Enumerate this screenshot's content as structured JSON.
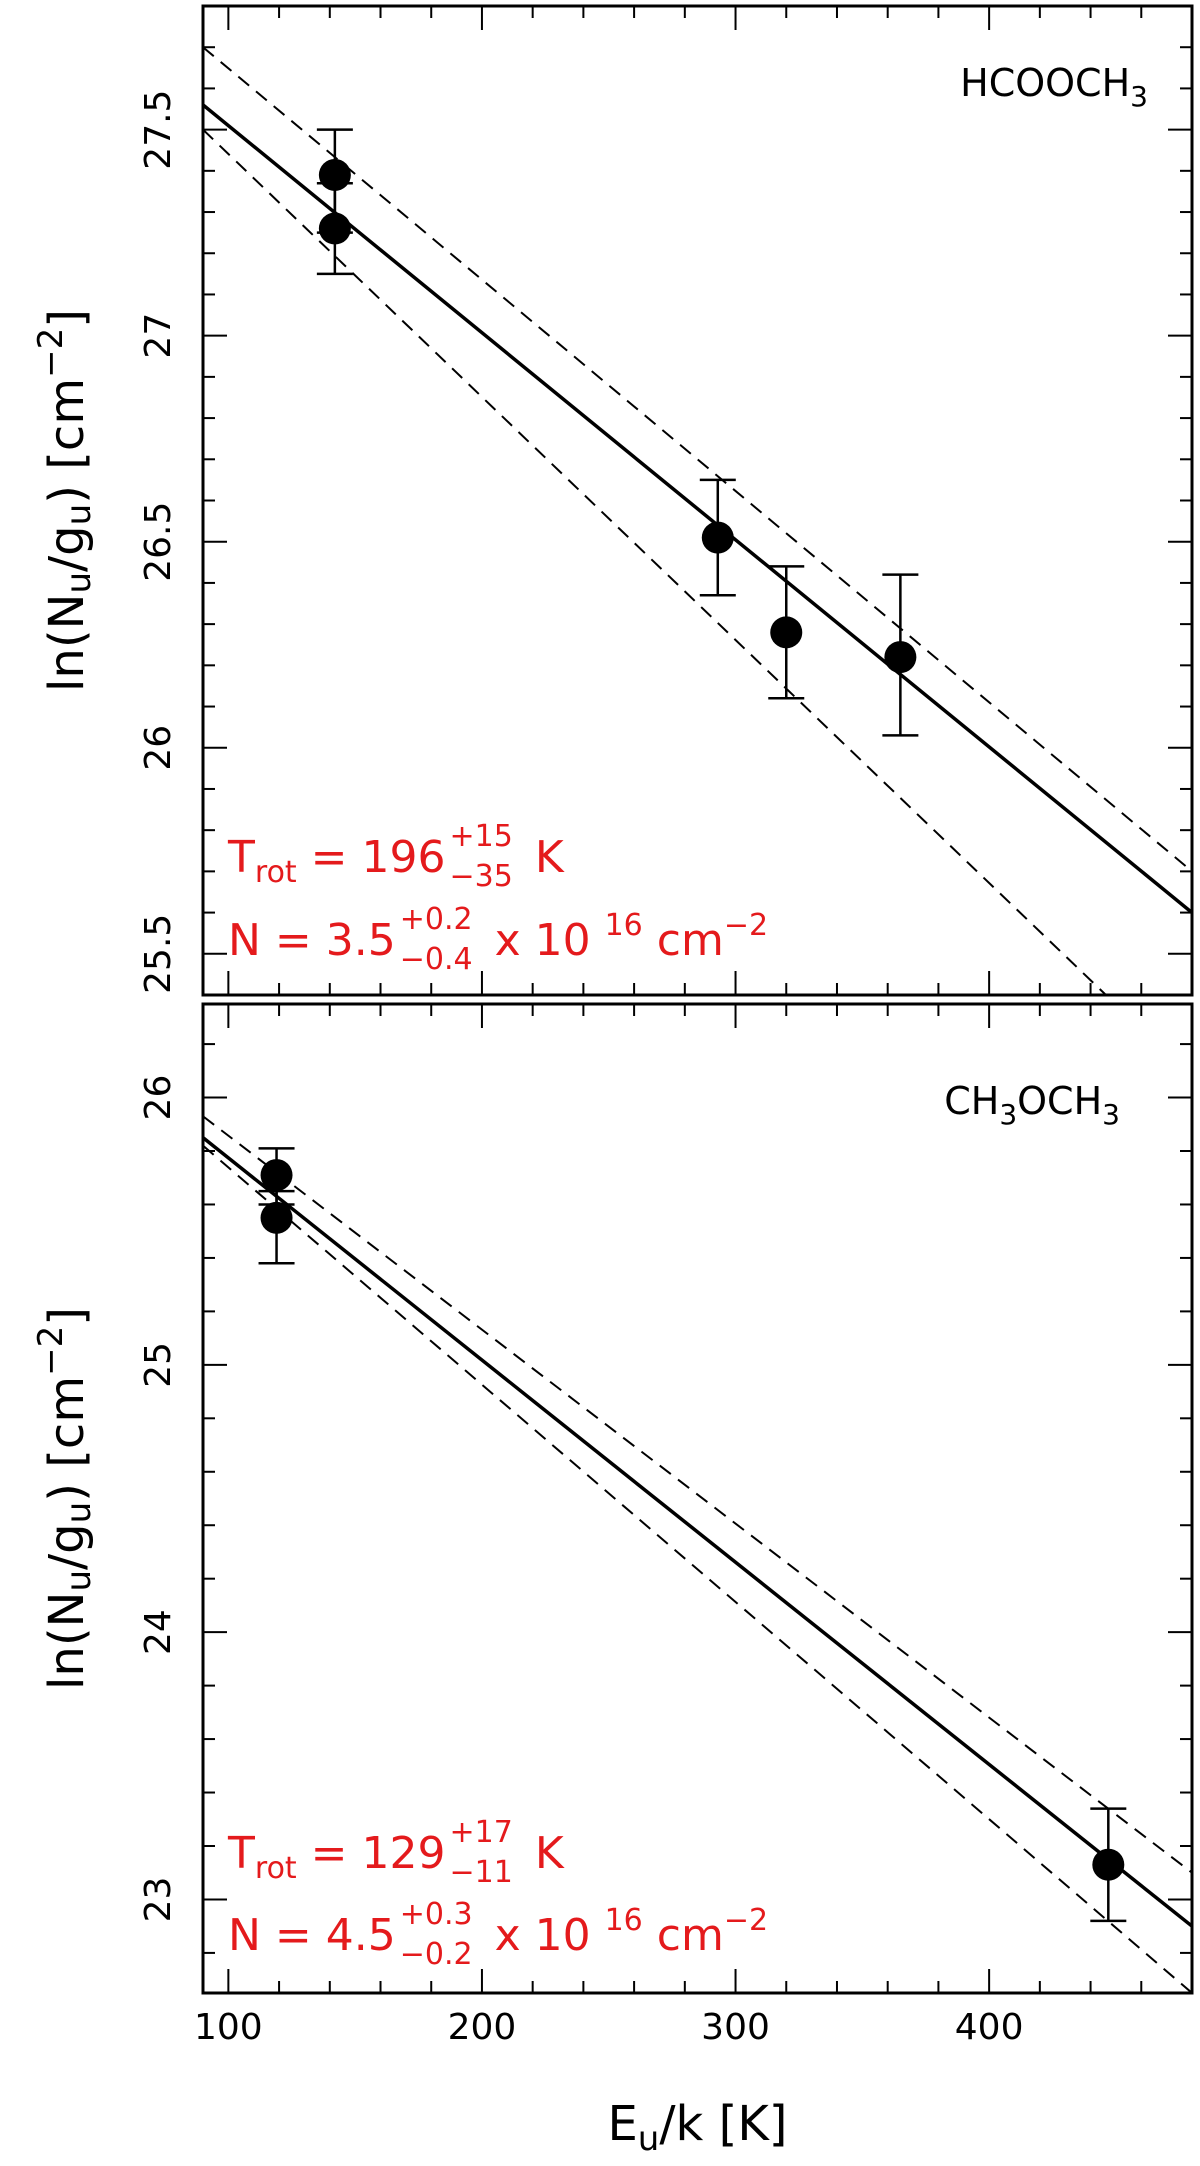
{
  "chart_data": [
    {
      "type": "scatter",
      "species": "HCOOCH",
      "species_subscript": "3",
      "ylabel": {
        "pre": "ln(N",
        "sub1": "u",
        "mid": "/g",
        "sub2": "u",
        "post": ")  [cm",
        "sup": "−2",
        "end": "]"
      },
      "xlim": [
        90,
        480
      ],
      "ylim": [
        25.4,
        27.8
      ],
      "yticks": [
        25.5,
        26,
        26.5,
        27,
        27.5
      ],
      "ytick_labels": [
        "25.5",
        "26",
        "26.5",
        "27",
        "27.5"
      ],
      "points": [
        {
          "x": 142,
          "y": 27.39,
          "err_low": 27.25,
          "err_high": 27.5
        },
        {
          "x": 142,
          "y": 27.26,
          "err_low": 27.15,
          "err_high": 27.37
        },
        {
          "x": 293,
          "y": 26.51,
          "err_low": 26.37,
          "err_high": 26.65
        },
        {
          "x": 320,
          "y": 26.28,
          "err_low": 26.12,
          "err_high": 26.44
        },
        {
          "x": 365,
          "y": 26.22,
          "err_low": 26.03,
          "err_high": 26.42
        }
      ],
      "fit_line": [
        [
          90,
          27.56
        ],
        [
          480,
          25.6
        ]
      ],
      "dashed_lines": [
        [
          [
            90,
            27.7
          ],
          [
            480,
            25.7
          ]
        ],
        [
          [
            90,
            27.5
          ],
          [
            480,
            25.2
          ]
        ]
      ],
      "annotation_trot": {
        "label": "T",
        "label_sub": "rot",
        "value": "196",
        "plus": "+15",
        "minus": "−35",
        "unit": "K"
      },
      "annotation_n": {
        "label": "N",
        "value": "3.5",
        "plus": "+0.2",
        "minus": "−0.4",
        "times": "x 10",
        "exp": "16",
        "unit": "cm",
        "unit_exp": "−2"
      }
    },
    {
      "type": "scatter",
      "species_parts": [
        "CH",
        "3",
        "OCH",
        "3"
      ],
      "ylabel": {
        "pre": "ln(N",
        "sub1": "u",
        "mid": "/g",
        "sub2": "u",
        "post": ")  [cm",
        "sup": "−2",
        "end": "]"
      },
      "xlim": [
        90,
        480
      ],
      "ylim": [
        22.65,
        26.35
      ],
      "yticks": [
        23,
        24,
        25,
        26
      ],
      "ytick_labels": [
        "23",
        "24",
        "25",
        "26"
      ],
      "xticks": [
        100,
        200,
        300,
        400
      ],
      "xtick_labels": [
        "100",
        "200",
        "300",
        "400"
      ],
      "xlabel": {
        "pre": "E",
        "sub": "u",
        "post": "/k  [K]"
      },
      "points": [
        {
          "x": 119,
          "y": 25.71,
          "err_low": 25.6,
          "err_high": 25.81
        },
        {
          "x": 119,
          "y": 25.55,
          "err_low": 25.38,
          "err_high": 25.65
        },
        {
          "x": 447,
          "y": 23.13,
          "err_low": 22.92,
          "err_high": 23.34
        }
      ],
      "fit_line": [
        [
          90,
          25.85
        ],
        [
          480,
          22.9
        ]
      ],
      "dashed_lines": [
        [
          [
            90,
            25.93
          ],
          [
            480,
            23.1
          ]
        ],
        [
          [
            90,
            25.82
          ],
          [
            480,
            22.65
          ]
        ]
      ],
      "annotation_trot": {
        "label": "T",
        "label_sub": "rot",
        "value": "129",
        "plus": "+17",
        "minus": "−11",
        "unit": "K"
      },
      "annotation_n": {
        "label": "N",
        "value": "4.5",
        "plus": "+0.3",
        "minus": "−0.2",
        "times": "x 10",
        "exp": "16",
        "unit": "cm",
        "unit_exp": "−2"
      }
    }
  ]
}
